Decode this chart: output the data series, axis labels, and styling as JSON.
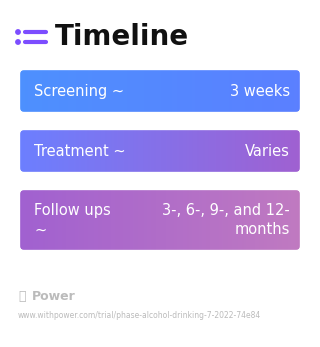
{
  "title": "Timeline",
  "title_fontsize": 20,
  "title_color": "#111111",
  "title_icon_dot_color": "#7c4dff",
  "title_icon_line_color": "#7c4dff",
  "background_color": "#ffffff",
  "rows": [
    {
      "label": "Screening ~",
      "value": "3 weeks",
      "color_left": "#4d90fe",
      "color_right": "#5b7fff",
      "text_color": "#ffffff",
      "label_fontsize": 10.5,
      "value_fontsize": 10.5,
      "multiline": false
    },
    {
      "label": "Treatment ~",
      "value": "Varies",
      "color_left": "#6b7fff",
      "color_right": "#a060d0",
      "text_color": "#ffffff",
      "label_fontsize": 10.5,
      "value_fontsize": 10.5,
      "multiline": false
    },
    {
      "label": "Follow ups\n~",
      "value": "3-, 6-, 9-, and 12-\nmonths",
      "color_left": "#a060d0",
      "color_right": "#c07ac0",
      "text_color": "#ffffff",
      "label_fontsize": 10.5,
      "value_fontsize": 10.5,
      "multiline": true
    }
  ],
  "footer_text": "Power",
  "footer_url": "www.withpower.com/trial/phase-alcohol-drinking-7-2022-74e84",
  "footer_color": "#bbbbbb",
  "footer_fontsize": 5.5,
  "footer_logo_fontsize": 9
}
